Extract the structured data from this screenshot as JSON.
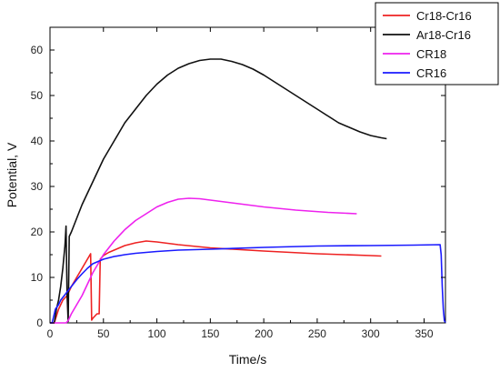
{
  "chart_data": {
    "type": "line",
    "xlabel": "Time/s",
    "ylabel": "Potential, V",
    "xlim": [
      0,
      370
    ],
    "ylim": [
      0,
      65
    ],
    "x_ticks": [
      0,
      50,
      100,
      150,
      200,
      250,
      300,
      350
    ],
    "y_ticks": [
      0,
      10,
      20,
      30,
      40,
      50,
      60
    ],
    "grid": false,
    "legend_position": "top-right",
    "series": [
      {
        "name": "Cr18-Cr16",
        "color": "#ee2222",
        "points": [
          [
            0,
            0
          ],
          [
            4,
            0
          ],
          [
            8,
            3
          ],
          [
            12,
            5
          ],
          [
            16,
            6
          ],
          [
            20,
            8
          ],
          [
            25,
            10
          ],
          [
            30,
            12
          ],
          [
            35,
            14
          ],
          [
            38,
            15.2
          ],
          [
            39,
            0.6
          ],
          [
            40,
            1
          ],
          [
            44,
            2
          ],
          [
            46,
            2
          ],
          [
            47,
            14
          ],
          [
            50,
            14.8
          ],
          [
            55,
            15.5
          ],
          [
            60,
            16
          ],
          [
            70,
            17
          ],
          [
            80,
            17.6
          ],
          [
            90,
            18
          ],
          [
            100,
            17.8
          ],
          [
            120,
            17.2
          ],
          [
            150,
            16.5
          ],
          [
            200,
            15.8
          ],
          [
            250,
            15.2
          ],
          [
            300,
            14.8
          ],
          [
            310,
            14.7
          ]
        ]
      },
      {
        "name": "Ar18-Cr16",
        "color": "#111111",
        "points": [
          [
            0,
            0
          ],
          [
            4,
            0
          ],
          [
            6,
            3
          ],
          [
            8,
            5
          ],
          [
            10,
            8
          ],
          [
            12,
            12
          ],
          [
            14,
            17
          ],
          [
            15,
            21.3
          ],
          [
            16,
            6
          ],
          [
            17,
            0.3
          ],
          [
            18,
            19
          ],
          [
            20,
            20
          ],
          [
            25,
            23
          ],
          [
            30,
            26
          ],
          [
            40,
            31
          ],
          [
            50,
            36
          ],
          [
            60,
            40
          ],
          [
            70,
            44
          ],
          [
            80,
            47
          ],
          [
            90,
            50
          ],
          [
            100,
            52.5
          ],
          [
            110,
            54.5
          ],
          [
            120,
            56
          ],
          [
            130,
            57
          ],
          [
            140,
            57.7
          ],
          [
            150,
            58
          ],
          [
            160,
            58
          ],
          [
            170,
            57.5
          ],
          [
            180,
            56.8
          ],
          [
            190,
            55.8
          ],
          [
            200,
            54.5
          ],
          [
            210,
            53
          ],
          [
            220,
            51.5
          ],
          [
            230,
            50
          ],
          [
            240,
            48.5
          ],
          [
            250,
            47
          ],
          [
            260,
            45.5
          ],
          [
            270,
            44
          ],
          [
            280,
            43
          ],
          [
            290,
            42
          ],
          [
            300,
            41.2
          ],
          [
            310,
            40.7
          ],
          [
            315,
            40.5
          ]
        ]
      },
      {
        "name": "CR18",
        "color": "#ee22ee",
        "points": [
          [
            0,
            0
          ],
          [
            15,
            0
          ],
          [
            17,
            0.5
          ],
          [
            20,
            2
          ],
          [
            25,
            4
          ],
          [
            30,
            6
          ],
          [
            35,
            8.5
          ],
          [
            40,
            11
          ],
          [
            45,
            13
          ],
          [
            50,
            15
          ],
          [
            60,
            18
          ],
          [
            70,
            20.5
          ],
          [
            80,
            22.5
          ],
          [
            90,
            24
          ],
          [
            100,
            25.5
          ],
          [
            110,
            26.5
          ],
          [
            120,
            27.2
          ],
          [
            130,
            27.4
          ],
          [
            140,
            27.3
          ],
          [
            150,
            27
          ],
          [
            170,
            26.4
          ],
          [
            200,
            25.5
          ],
          [
            230,
            24.8
          ],
          [
            260,
            24.3
          ],
          [
            287,
            24
          ]
        ]
      },
      {
        "name": "CR16",
        "color": "#1a1aff",
        "points": [
          [
            0,
            0
          ],
          [
            2,
            0
          ],
          [
            3,
            1
          ],
          [
            5,
            3
          ],
          [
            8,
            4
          ],
          [
            10,
            5
          ],
          [
            15,
            6.5
          ],
          [
            20,
            8
          ],
          [
            25,
            9.5
          ],
          [
            30,
            10.8
          ],
          [
            35,
            12
          ],
          [
            40,
            13
          ],
          [
            45,
            13.5
          ],
          [
            50,
            14
          ],
          [
            60,
            14.6
          ],
          [
            70,
            15
          ],
          [
            80,
            15.3
          ],
          [
            90,
            15.5
          ],
          [
            100,
            15.7
          ],
          [
            120,
            16
          ],
          [
            150,
            16.2
          ],
          [
            200,
            16.6
          ],
          [
            250,
            16.9
          ],
          [
            300,
            17
          ],
          [
            340,
            17.1
          ],
          [
            365,
            17.2
          ],
          [
            366,
            15
          ],
          [
            367,
            8
          ],
          [
            368,
            3
          ],
          [
            369,
            0.5
          ],
          [
            370,
            0
          ]
        ]
      }
    ]
  }
}
